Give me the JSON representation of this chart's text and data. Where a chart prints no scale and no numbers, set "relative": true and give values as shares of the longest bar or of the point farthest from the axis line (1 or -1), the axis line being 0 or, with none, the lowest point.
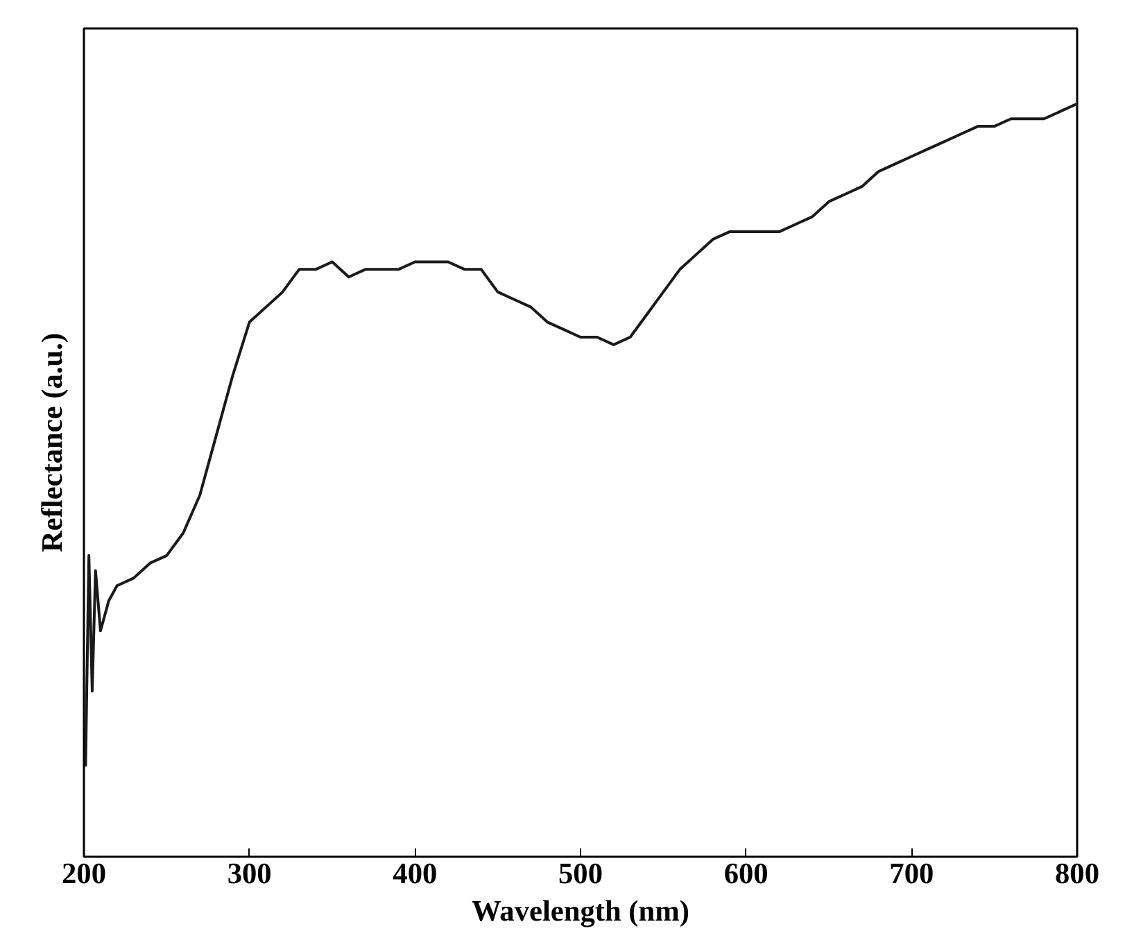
{
  "chart_data": {
    "type": "line",
    "relative": true,
    "xlabel": "Wavelength (nm)",
    "ylabel": "Reflectance (a.u.)",
    "xlim": [
      200,
      800
    ],
    "xticks": [
      200,
      300,
      400,
      500,
      600,
      700,
      800
    ],
    "grid": false,
    "marker": "none",
    "line_style": "solid",
    "series": [
      {
        "color": "#1a1a1a",
        "x": [
          201,
          203,
          205,
          207,
          210,
          215,
          220,
          230,
          240,
          250,
          260,
          270,
          280,
          290,
          300,
          310,
          320,
          330,
          340,
          350,
          360,
          370,
          380,
          390,
          400,
          410,
          420,
          430,
          440,
          450,
          460,
          470,
          480,
          490,
          500,
          510,
          520,
          530,
          540,
          550,
          560,
          570,
          580,
          590,
          600,
          610,
          620,
          630,
          640,
          650,
          660,
          670,
          680,
          690,
          700,
          710,
          720,
          730,
          740,
          750,
          760,
          770,
          780,
          790,
          800
        ],
        "values": [
          0.12,
          0.4,
          0.22,
          0.38,
          0.3,
          0.34,
          0.36,
          0.37,
          0.39,
          0.4,
          0.43,
          0.48,
          0.56,
          0.64,
          0.71,
          0.73,
          0.75,
          0.78,
          0.78,
          0.79,
          0.77,
          0.78,
          0.78,
          0.78,
          0.79,
          0.79,
          0.79,
          0.78,
          0.78,
          0.75,
          0.74,
          0.73,
          0.71,
          0.7,
          0.69,
          0.69,
          0.68,
          0.69,
          0.72,
          0.75,
          0.78,
          0.8,
          0.82,
          0.83,
          0.83,
          0.83,
          0.83,
          0.84,
          0.85,
          0.87,
          0.88,
          0.89,
          0.91,
          0.92,
          0.93,
          0.94,
          0.95,
          0.96,
          0.97,
          0.97,
          0.98,
          0.98,
          0.98,
          0.99,
          1.0
        ]
      }
    ]
  }
}
